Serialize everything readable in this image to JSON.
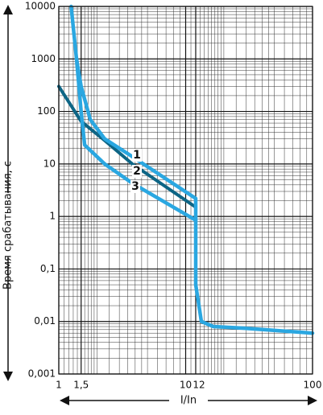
{
  "chart_data": {
    "type": "line",
    "x_label": "I/In",
    "y_label": "Время срабатывания, с",
    "xscale": "log",
    "yscale": "log",
    "grid": true,
    "xlim": [
      1,
      100
    ],
    "ylim": [
      0.001,
      10000
    ],
    "xticks": [
      1,
      {
        "value": 1.5,
        "label": "1,5"
      },
      10,
      12,
      100
    ],
    "yticks": [
      {
        "value": 0.001,
        "label": "0,001"
      },
      {
        "value": 0.01,
        "label": "0,01"
      },
      {
        "value": 0.1,
        "label": "0,1"
      },
      1,
      10,
      100,
      1000,
      10000
    ],
    "series": [
      {
        "name": "1",
        "color": "#2aa7e1",
        "x": [
          1.25,
          1.38,
          1.5,
          1.77,
          2.3,
          3.6,
          12,
          12,
          13.3,
          16.5,
          27.6,
          100
        ],
        "values": [
          10000,
          1000,
          300,
          70,
          30,
          15,
          2.2,
          0.05,
          0.01,
          0.008,
          0.0075,
          0.006
        ]
      },
      {
        "name": "2",
        "color": "#0d6585",
        "x": [
          1,
          1.5,
          2.3,
          3.8,
          12
        ],
        "values": [
          300,
          65,
          28,
          10,
          1.5
        ]
      },
      {
        "name": "3",
        "color": "#2aa7e1",
        "x": [
          1.38,
          1.5,
          1.6,
          2.3,
          3.8,
          12
        ],
        "values": [
          1000,
          100,
          23,
          10,
          4.3,
          0.85
        ]
      }
    ]
  }
}
